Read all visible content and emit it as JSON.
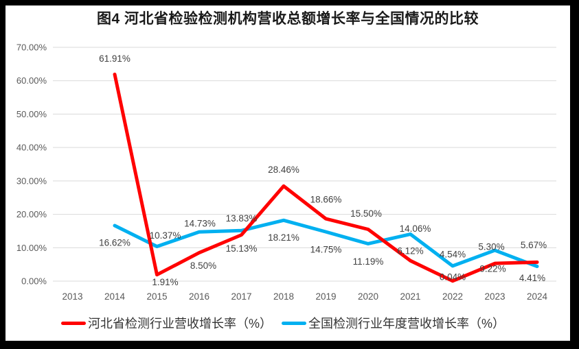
{
  "frame": {
    "outer_background": "#000000",
    "card_background": "#FFFFFF"
  },
  "chart_data": {
    "type": "line",
    "title": "图4 河北省检验检测机构营收总额增长率与全国情况的比较",
    "categories": [
      "2013",
      "2014",
      "2015",
      "2016",
      "2017",
      "2018",
      "2019",
      "2020",
      "2021",
      "2022",
      "2023",
      "2024"
    ],
    "series": [
      {
        "name": "河北省检测行业营收增长率（%）",
        "color": "#FF0000",
        "values": [
          null,
          61.91,
          1.91,
          8.5,
          13.83,
          28.46,
          18.66,
          15.5,
          6.12,
          0.04,
          5.3,
          5.67
        ],
        "label_dx": [
          0,
          0,
          12,
          6,
          0,
          0,
          0,
          -3,
          0,
          0,
          -5,
          -5
        ],
        "label_dy": [
          0,
          -23,
          11,
          19,
          -24,
          -24,
          -28,
          -23,
          -14,
          -6,
          -24,
          -25
        ]
      },
      {
        "name": "全国检测行业年度营收增长率（%）",
        "color": "#00B0F0",
        "values": [
          null,
          16.62,
          10.37,
          14.73,
          15.13,
          18.21,
          14.75,
          11.19,
          14.06,
          4.54,
          9.22,
          4.41
        ],
        "label_dx": [
          0,
          0,
          12,
          1,
          0,
          0,
          0,
          0,
          7,
          0,
          -3,
          -7
        ],
        "label_dy": [
          0,
          25,
          -16,
          -12,
          26,
          25,
          26,
          26,
          -8,
          -17,
          27,
          17
        ]
      }
    ],
    "y_ticks": [
      "0.00%",
      "10.00%",
      "20.00%",
      "30.00%",
      "40.00%",
      "50.00%",
      "60.00%",
      "70.00%"
    ],
    "ylim": [
      0,
      70
    ],
    "xlabel": "",
    "ylabel": "",
    "grid": true,
    "legend_position": "bottom",
    "style": {
      "grid_color": "#D9D9D9",
      "tick_color": "#595959",
      "data_label_color": "#404040",
      "line_width": 5
    }
  }
}
